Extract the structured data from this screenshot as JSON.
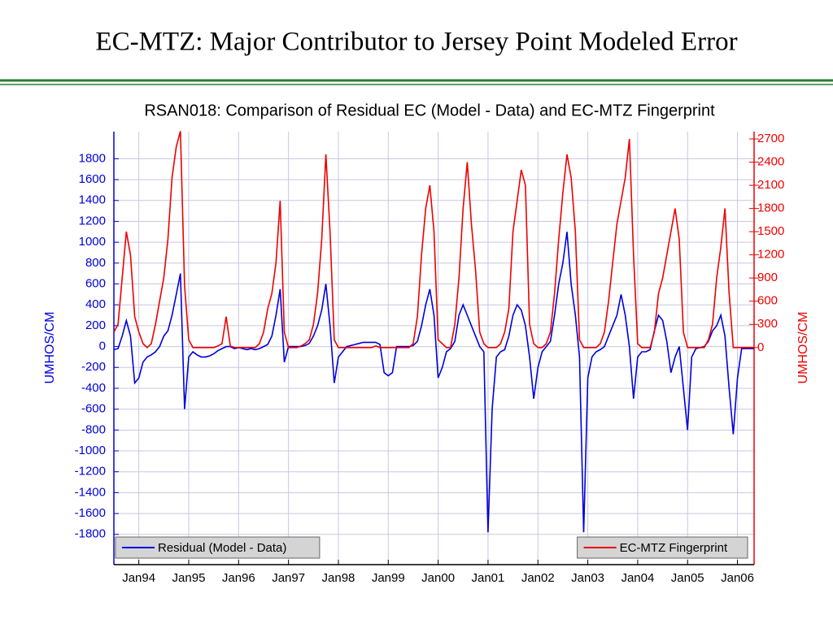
{
  "slide_title": "EC-MTZ: Major Contributor to Jersey Point Modeled Error",
  "chart_data": {
    "type": "line",
    "title": "RSAN018: Comparison of Residual EC (Model - Data) and EC-MTZ Fingerprint",
    "ylabel": "UMHOS/CM",
    "y2label": "UMHOS/CM",
    "grid": true,
    "xlim": [
      "1993-07",
      "2006-05"
    ],
    "xticks": [
      {
        "value": "1994-01",
        "label": "Jan94"
      },
      {
        "value": "1995-01",
        "label": "Jan95"
      },
      {
        "value": "1996-01",
        "label": "Jan96"
      },
      {
        "value": "1997-01",
        "label": "Jan97"
      },
      {
        "value": "1998-01",
        "label": "Jan98"
      },
      {
        "value": "1999-01",
        "label": "Jan99"
      },
      {
        "value": "2000-01",
        "label": "Jan00"
      },
      {
        "value": "2001-01",
        "label": "Jan01"
      },
      {
        "value": "2002-01",
        "label": "Jan02"
      },
      {
        "value": "2003-01",
        "label": "Jan03"
      },
      {
        "value": "2004-01",
        "label": "Jan04"
      },
      {
        "value": "2005-01",
        "label": "Jan05"
      },
      {
        "value": "2006-01",
        "label": "Jan06"
      }
    ],
    "ylim": [
      -2090,
      2060
    ],
    "yticks": [
      1800,
      1600,
      1400,
      1200,
      1000,
      800,
      600,
      400,
      200,
      0,
      -200,
      -400,
      -600,
      -800,
      -1000,
      -1200,
      -1400,
      -1600,
      -1800
    ],
    "y2lim": [
      -2810,
      2795
    ],
    "y2ticks": [
      2700,
      2400,
      2100,
      1800,
      1500,
      1200,
      900,
      600,
      300,
      0
    ],
    "x": [
      "1993-07",
      "1993-08",
      "1993-09",
      "1993-10",
      "1993-11",
      "1993-12",
      "1994-01",
      "1994-02",
      "1994-03",
      "1994-04",
      "1994-05",
      "1994-06",
      "1994-07",
      "1994-08",
      "1994-09",
      "1994-10",
      "1994-11",
      "1994-12",
      "1995-01",
      "1995-02",
      "1995-03",
      "1995-04",
      "1995-05",
      "1995-06",
      "1995-07",
      "1995-08",
      "1995-09",
      "1995-10",
      "1995-11",
      "1995-12",
      "1996-01",
      "1996-02",
      "1996-03",
      "1996-04",
      "1996-05",
      "1996-06",
      "1996-07",
      "1996-08",
      "1996-09",
      "1996-10",
      "1996-11",
      "1996-12",
      "1997-01",
      "1997-02",
      "1997-03",
      "1997-04",
      "1997-05",
      "1997-06",
      "1997-07",
      "1997-08",
      "1997-09",
      "1997-10",
      "1997-11",
      "1997-12",
      "1998-01",
      "1998-02",
      "1998-03",
      "1998-04",
      "1998-05",
      "1998-06",
      "1998-07",
      "1998-08",
      "1998-09",
      "1998-10",
      "1998-11",
      "1998-12",
      "1999-01",
      "1999-02",
      "1999-03",
      "1999-04",
      "1999-05",
      "1999-06",
      "1999-07",
      "1999-08",
      "1999-09",
      "1999-10",
      "1999-11",
      "1999-12",
      "2000-01",
      "2000-02",
      "2000-03",
      "2000-04",
      "2000-05",
      "2000-06",
      "2000-07",
      "2000-08",
      "2000-09",
      "2000-10",
      "2000-11",
      "2000-12",
      "2001-01",
      "2001-02",
      "2001-03",
      "2001-04",
      "2001-05",
      "2001-06",
      "2001-07",
      "2001-08",
      "2001-09",
      "2001-10",
      "2001-11",
      "2001-12",
      "2002-01",
      "2002-02",
      "2002-03",
      "2002-04",
      "2002-05",
      "2002-06",
      "2002-07",
      "2002-08",
      "2002-09",
      "2002-10",
      "2002-11",
      "2002-12",
      "2003-01",
      "2003-02",
      "2003-03",
      "2003-04",
      "2003-05",
      "2003-06",
      "2003-07",
      "2003-08",
      "2003-09",
      "2003-10",
      "2003-11",
      "2003-12",
      "2004-01",
      "2004-02",
      "2004-03",
      "2004-04",
      "2004-05",
      "2004-06",
      "2004-07",
      "2004-08",
      "2004-09",
      "2004-10",
      "2004-11",
      "2004-12",
      "2005-01",
      "2005-02",
      "2005-03",
      "2005-04",
      "2005-05",
      "2005-06",
      "2005-07",
      "2005-08",
      "2005-09",
      "2005-10",
      "2005-11",
      "2005-12",
      "2006-01",
      "2006-02",
      "2006-03",
      "2006-04",
      "2006-05"
    ],
    "series": [
      {
        "name": "Residual (Model - Data)",
        "color": "#0000dd",
        "axis": "y",
        "legend_loc": "lower left",
        "values": [
          -30,
          -20,
          100,
          250,
          100,
          -350,
          -300,
          -150,
          -100,
          -80,
          -50,
          0,
          100,
          150,
          300,
          500,
          700,
          -600,
          -100,
          -50,
          -80,
          -100,
          -100,
          -90,
          -70,
          -40,
          -20,
          0,
          0,
          -20,
          -10,
          -20,
          -30,
          -20,
          -30,
          -20,
          0,
          20,
          100,
          300,
          550,
          -150,
          0,
          0,
          0,
          0,
          10,
          30,
          100,
          200,
          350,
          600,
          200,
          -350,
          -100,
          -50,
          0,
          10,
          20,
          30,
          40,
          40,
          40,
          40,
          20,
          -250,
          -280,
          -250,
          0,
          0,
          0,
          0,
          10,
          50,
          200,
          400,
          550,
          300,
          -300,
          -200,
          -50,
          -20,
          50,
          300,
          400,
          300,
          200,
          100,
          0,
          -50,
          -1780,
          -600,
          -100,
          -50,
          -30,
          100,
          300,
          400,
          350,
          200,
          -100,
          -500,
          -200,
          -50,
          0,
          50,
          300,
          600,
          800,
          1100,
          600,
          300,
          -100,
          -1780,
          -300,
          -100,
          -50,
          -30,
          0,
          100,
          200,
          300,
          500,
          300,
          0,
          -500,
          -100,
          -50,
          -50,
          -30,
          150,
          300,
          250,
          50,
          -250,
          -100,
          0,
          -400,
          -800,
          -100,
          -20,
          -10,
          0,
          50,
          150,
          200,
          300,
          100,
          -400,
          -840,
          -300,
          -20,
          -20,
          -20,
          -20
        ]
      },
      {
        "name": "EC-MTZ Fingerprint",
        "color": "#ee0000",
        "axis": "y2",
        "legend_loc": "lower right",
        "values": [
          200,
          300,
          900,
          1500,
          1200,
          400,
          200,
          50,
          0,
          50,
          300,
          600,
          900,
          1400,
          2200,
          2600,
          2800,
          800,
          100,
          0,
          0,
          0,
          0,
          0,
          0,
          20,
          50,
          400,
          20,
          0,
          0,
          0,
          0,
          0,
          0,
          50,
          200,
          500,
          700,
          1100,
          1900,
          200,
          0,
          0,
          0,
          20,
          50,
          100,
          300,
          700,
          1400,
          2500,
          1500,
          100,
          0,
          0,
          0,
          0,
          0,
          0,
          0,
          0,
          0,
          20,
          0,
          0,
          0,
          0,
          0,
          0,
          0,
          0,
          50,
          400,
          1200,
          1800,
          2100,
          1500,
          100,
          50,
          0,
          0,
          300,
          900,
          1800,
          2400,
          1600,
          1000,
          200,
          50,
          0,
          0,
          0,
          50,
          200,
          500,
          1500,
          1900,
          2300,
          2100,
          300,
          50,
          0,
          0,
          50,
          200,
          700,
          1400,
          2000,
          2500,
          2200,
          1500,
          100,
          0,
          0,
          0,
          0,
          50,
          200,
          600,
          1100,
          1600,
          1900,
          2200,
          2700,
          1200,
          50,
          0,
          0,
          0,
          200,
          700,
          900,
          1200,
          1500,
          1800,
          1400,
          200,
          0,
          0,
          0,
          0,
          0,
          100,
          300,
          900,
          1300,
          1800,
          700,
          0,
          0,
          0,
          0,
          0,
          0
        ]
      }
    ]
  }
}
